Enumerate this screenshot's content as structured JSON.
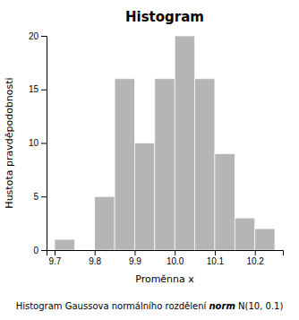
{
  "chart_data": {
    "type": "histogram",
    "title": "Histogram",
    "xlabel": "Proměnna x",
    "ylabel": "Hustota pravděpodobnosti",
    "bins": [
      9.7,
      9.75,
      9.8,
      9.85,
      9.9,
      9.95,
      10.0,
      10.05,
      10.1,
      10.15,
      10.2,
      10.25
    ],
    "values": [
      1,
      0,
      5,
      16,
      10,
      16,
      20,
      16,
      9,
      3,
      2
    ],
    "color": "#b5b5b5",
    "xlim": [
      9.68,
      10.27
    ],
    "xticks": [
      9.7,
      9.8,
      9.9,
      {
        "value": 10.0,
        "label": "10.0"
      },
      10.1,
      10.2
    ],
    "ylim": [
      0,
      20
    ],
    "yticks": [
      0,
      5,
      10,
      15,
      20
    ],
    "grid": false,
    "caption": [
      "Histogram Gaussova normálního rozdělení ",
      "norm",
      " N(10, 0.1)"
    ]
  }
}
